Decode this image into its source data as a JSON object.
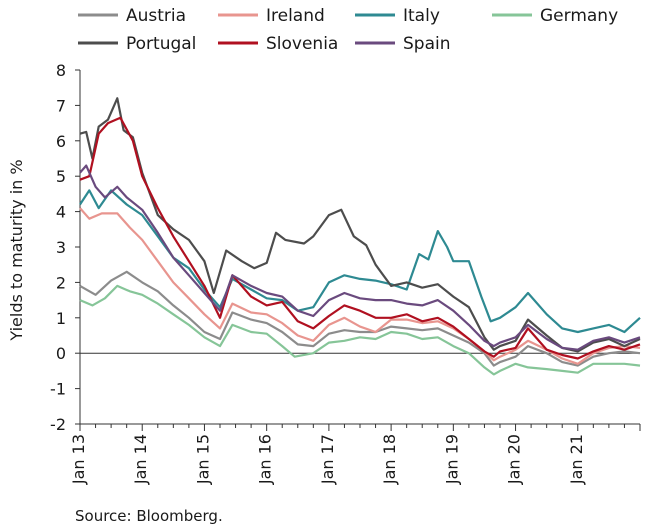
{
  "chart_data": {
    "type": "line",
    "title": "",
    "ylabel": "Yields to maturity in %",
    "xlabel": "",
    "source": "Source: Bloomberg.",
    "ylim": [
      -2,
      8
    ],
    "yticks": [
      -2,
      -1,
      0,
      1,
      2,
      3,
      4,
      5,
      6,
      7,
      8
    ],
    "xlim": [
      2013.0,
      2022.0
    ],
    "xticks": [
      {
        "label": "Jan 13",
        "x": 2013
      },
      {
        "label": "Jan 14",
        "x": 2014
      },
      {
        "label": "Jan 15",
        "x": 2015
      },
      {
        "label": "Jan 16",
        "x": 2016
      },
      {
        "label": "Jan 17",
        "x": 2017
      },
      {
        "label": "Jan 18",
        "x": 2018
      },
      {
        "label": "Jan 19",
        "x": 2019
      },
      {
        "label": "Jan 20",
        "x": 2020
      },
      {
        "label": "Jan 21",
        "x": 2021
      }
    ],
    "grid": false,
    "legend_position": "top",
    "series": [
      {
        "name": "Austria",
        "color": "#8c8c8c",
        "points": [
          [
            2013.0,
            1.9
          ],
          [
            2013.25,
            1.65
          ],
          [
            2013.5,
            2.05
          ],
          [
            2013.75,
            2.3
          ],
          [
            2014.0,
            2.0
          ],
          [
            2014.25,
            1.75
          ],
          [
            2014.5,
            1.35
          ],
          [
            2014.75,
            1.0
          ],
          [
            2015.0,
            0.6
          ],
          [
            2015.25,
            0.4
          ],
          [
            2015.45,
            1.15
          ],
          [
            2015.75,
            0.95
          ],
          [
            2016.0,
            0.85
          ],
          [
            2016.25,
            0.6
          ],
          [
            2016.5,
            0.25
          ],
          [
            2016.75,
            0.2
          ],
          [
            2017.0,
            0.55
          ],
          [
            2017.25,
            0.65
          ],
          [
            2017.5,
            0.6
          ],
          [
            2017.75,
            0.6
          ],
          [
            2018.0,
            0.75
          ],
          [
            2018.25,
            0.7
          ],
          [
            2018.5,
            0.65
          ],
          [
            2018.75,
            0.7
          ],
          [
            2019.0,
            0.5
          ],
          [
            2019.25,
            0.3
          ],
          [
            2019.5,
            0.0
          ],
          [
            2019.65,
            -0.35
          ],
          [
            2019.75,
            -0.25
          ],
          [
            2020.0,
            -0.1
          ],
          [
            2020.2,
            0.2
          ],
          [
            2020.5,
            0.0
          ],
          [
            2020.75,
            -0.25
          ],
          [
            2021.0,
            -0.35
          ],
          [
            2021.25,
            -0.1
          ],
          [
            2021.5,
            0.0
          ],
          [
            2021.75,
            0.05
          ],
          [
            2022.0,
            0.0
          ]
        ]
      },
      {
        "name": "Ireland",
        "color": "#e8958f",
        "points": [
          [
            2013.0,
            4.1
          ],
          [
            2013.15,
            3.8
          ],
          [
            2013.35,
            3.95
          ],
          [
            2013.6,
            3.95
          ],
          [
            2013.8,
            3.55
          ],
          [
            2014.0,
            3.2
          ],
          [
            2014.25,
            2.6
          ],
          [
            2014.5,
            2.0
          ],
          [
            2014.75,
            1.55
          ],
          [
            2015.0,
            1.1
          ],
          [
            2015.25,
            0.7
          ],
          [
            2015.45,
            1.4
          ],
          [
            2015.75,
            1.15
          ],
          [
            2016.0,
            1.1
          ],
          [
            2016.25,
            0.85
          ],
          [
            2016.5,
            0.5
          ],
          [
            2016.75,
            0.35
          ],
          [
            2017.0,
            0.8
          ],
          [
            2017.25,
            1.0
          ],
          [
            2017.5,
            0.75
          ],
          [
            2017.75,
            0.6
          ],
          [
            2018.0,
            0.95
          ],
          [
            2018.25,
            0.95
          ],
          [
            2018.5,
            0.85
          ],
          [
            2018.75,
            0.9
          ],
          [
            2019.0,
            0.7
          ],
          [
            2019.25,
            0.4
          ],
          [
            2019.5,
            0.05
          ],
          [
            2019.65,
            -0.2
          ],
          [
            2019.75,
            -0.1
          ],
          [
            2020.0,
            0.1
          ],
          [
            2020.2,
            0.35
          ],
          [
            2020.5,
            0.1
          ],
          [
            2020.75,
            -0.15
          ],
          [
            2021.0,
            -0.3
          ],
          [
            2021.25,
            0.0
          ],
          [
            2021.5,
            0.15
          ],
          [
            2021.75,
            0.2
          ],
          [
            2022.0,
            0.15
          ]
        ]
      },
      {
        "name": "Italy",
        "color": "#2e8a92",
        "points": [
          [
            2013.0,
            4.2
          ],
          [
            2013.15,
            4.6
          ],
          [
            2013.3,
            4.1
          ],
          [
            2013.5,
            4.6
          ],
          [
            2013.75,
            4.2
          ],
          [
            2014.0,
            3.9
          ],
          [
            2014.25,
            3.3
          ],
          [
            2014.5,
            2.7
          ],
          [
            2014.75,
            2.4
          ],
          [
            2015.0,
            1.8
          ],
          [
            2015.25,
            1.3
          ],
          [
            2015.45,
            2.1
          ],
          [
            2015.75,
            1.8
          ],
          [
            2016.0,
            1.55
          ],
          [
            2016.25,
            1.5
          ],
          [
            2016.5,
            1.2
          ],
          [
            2016.75,
            1.3
          ],
          [
            2017.0,
            2.0
          ],
          [
            2017.25,
            2.2
          ],
          [
            2017.5,
            2.1
          ],
          [
            2017.75,
            2.05
          ],
          [
            2018.0,
            1.95
          ],
          [
            2018.25,
            1.8
          ],
          [
            2018.45,
            2.8
          ],
          [
            2018.6,
            2.65
          ],
          [
            2018.75,
            3.45
          ],
          [
            2018.9,
            3.0
          ],
          [
            2019.0,
            2.6
          ],
          [
            2019.25,
            2.6
          ],
          [
            2019.45,
            1.6
          ],
          [
            2019.6,
            0.9
          ],
          [
            2019.75,
            1.0
          ],
          [
            2020.0,
            1.3
          ],
          [
            2020.2,
            1.7
          ],
          [
            2020.5,
            1.1
          ],
          [
            2020.75,
            0.7
          ],
          [
            2021.0,
            0.6
          ],
          [
            2021.25,
            0.7
          ],
          [
            2021.5,
            0.8
          ],
          [
            2021.75,
            0.6
          ],
          [
            2022.0,
            1.0
          ]
        ]
      },
      {
        "name": "Germany",
        "color": "#86c598",
        "points": [
          [
            2013.0,
            1.5
          ],
          [
            2013.2,
            1.35
          ],
          [
            2013.4,
            1.55
          ],
          [
            2013.6,
            1.9
          ],
          [
            2013.8,
            1.75
          ],
          [
            2014.0,
            1.65
          ],
          [
            2014.25,
            1.4
          ],
          [
            2014.5,
            1.1
          ],
          [
            2014.75,
            0.8
          ],
          [
            2015.0,
            0.45
          ],
          [
            2015.25,
            0.2
          ],
          [
            2015.45,
            0.8
          ],
          [
            2015.75,
            0.6
          ],
          [
            2016.0,
            0.55
          ],
          [
            2016.25,
            0.2
          ],
          [
            2016.45,
            -0.1
          ],
          [
            2016.75,
            0.0
          ],
          [
            2017.0,
            0.3
          ],
          [
            2017.25,
            0.35
          ],
          [
            2017.5,
            0.45
          ],
          [
            2017.75,
            0.4
          ],
          [
            2018.0,
            0.6
          ],
          [
            2018.25,
            0.55
          ],
          [
            2018.5,
            0.4
          ],
          [
            2018.75,
            0.45
          ],
          [
            2019.0,
            0.2
          ],
          [
            2019.25,
            0.0
          ],
          [
            2019.5,
            -0.4
          ],
          [
            2019.65,
            -0.6
          ],
          [
            2019.75,
            -0.5
          ],
          [
            2020.0,
            -0.3
          ],
          [
            2020.2,
            -0.4
          ],
          [
            2020.5,
            -0.45
          ],
          [
            2020.75,
            -0.5
          ],
          [
            2021.0,
            -0.55
          ],
          [
            2021.25,
            -0.3
          ],
          [
            2021.5,
            -0.3
          ],
          [
            2021.75,
            -0.3
          ],
          [
            2022.0,
            -0.35
          ]
        ]
      },
      {
        "name": "Portugal",
        "color": "#4d4d4d",
        "points": [
          [
            2013.0,
            6.2
          ],
          [
            2013.1,
            6.25
          ],
          [
            2013.2,
            5.5
          ],
          [
            2013.3,
            6.4
          ],
          [
            2013.45,
            6.6
          ],
          [
            2013.6,
            7.2
          ],
          [
            2013.7,
            6.3
          ],
          [
            2013.85,
            6.1
          ],
          [
            2014.0,
            5.1
          ],
          [
            2014.25,
            3.9
          ],
          [
            2014.5,
            3.5
          ],
          [
            2014.75,
            3.2
          ],
          [
            2015.0,
            2.6
          ],
          [
            2015.15,
            1.7
          ],
          [
            2015.35,
            2.9
          ],
          [
            2015.6,
            2.6
          ],
          [
            2015.8,
            2.4
          ],
          [
            2016.0,
            2.55
          ],
          [
            2016.15,
            3.4
          ],
          [
            2016.3,
            3.2
          ],
          [
            2016.6,
            3.1
          ],
          [
            2016.75,
            3.3
          ],
          [
            2017.0,
            3.9
          ],
          [
            2017.2,
            4.05
          ],
          [
            2017.4,
            3.3
          ],
          [
            2017.6,
            3.05
          ],
          [
            2017.75,
            2.5
          ],
          [
            2018.0,
            1.9
          ],
          [
            2018.25,
            2.0
          ],
          [
            2018.5,
            1.85
          ],
          [
            2018.75,
            1.95
          ],
          [
            2019.0,
            1.6
          ],
          [
            2019.25,
            1.3
          ],
          [
            2019.5,
            0.45
          ],
          [
            2019.65,
            0.1
          ],
          [
            2019.75,
            0.2
          ],
          [
            2020.0,
            0.35
          ],
          [
            2020.2,
            0.95
          ],
          [
            2020.5,
            0.5
          ],
          [
            2020.75,
            0.15
          ],
          [
            2021.0,
            0.05
          ],
          [
            2021.25,
            0.3
          ],
          [
            2021.5,
            0.4
          ],
          [
            2021.75,
            0.2
          ],
          [
            2022.0,
            0.4
          ]
        ]
      },
      {
        "name": "Slovenia",
        "color": "#b01020",
        "points": [
          [
            2013.0,
            4.9
          ],
          [
            2013.15,
            5.0
          ],
          [
            2013.3,
            6.2
          ],
          [
            2013.45,
            6.5
          ],
          [
            2013.65,
            6.65
          ],
          [
            2013.85,
            6.0
          ],
          [
            2014.0,
            5.0
          ],
          [
            2014.25,
            4.1
          ],
          [
            2014.5,
            3.3
          ],
          [
            2014.75,
            2.6
          ],
          [
            2015.0,
            1.9
          ],
          [
            2015.25,
            1.0
          ],
          [
            2015.45,
            2.2
          ],
          [
            2015.75,
            1.6
          ],
          [
            2016.0,
            1.35
          ],
          [
            2016.25,
            1.45
          ],
          [
            2016.5,
            0.9
          ],
          [
            2016.75,
            0.7
          ],
          [
            2017.0,
            1.05
          ],
          [
            2017.25,
            1.35
          ],
          [
            2017.5,
            1.2
          ],
          [
            2017.75,
            1.0
          ],
          [
            2018.0,
            1.0
          ],
          [
            2018.25,
            1.1
          ],
          [
            2018.5,
            0.9
          ],
          [
            2018.75,
            1.0
          ],
          [
            2019.0,
            0.75
          ],
          [
            2019.25,
            0.4
          ],
          [
            2019.5,
            0.05
          ],
          [
            2019.65,
            -0.1
          ],
          [
            2019.75,
            0.05
          ],
          [
            2020.0,
            0.15
          ],
          [
            2020.2,
            0.7
          ],
          [
            2020.5,
            0.1
          ],
          [
            2020.75,
            -0.05
          ],
          [
            2021.0,
            -0.15
          ],
          [
            2021.25,
            0.05
          ],
          [
            2021.5,
            0.2
          ],
          [
            2021.75,
            0.1
          ],
          [
            2022.0,
            0.25
          ]
        ]
      },
      {
        "name": "Spain",
        "color": "#6a4a7e",
        "points": [
          [
            2013.0,
            5.1
          ],
          [
            2013.1,
            5.3
          ],
          [
            2013.25,
            4.7
          ],
          [
            2013.4,
            4.4
          ],
          [
            2013.6,
            4.7
          ],
          [
            2013.75,
            4.4
          ],
          [
            2014.0,
            4.05
          ],
          [
            2014.25,
            3.4
          ],
          [
            2014.5,
            2.7
          ],
          [
            2014.75,
            2.2
          ],
          [
            2015.0,
            1.7
          ],
          [
            2015.25,
            1.2
          ],
          [
            2015.45,
            2.2
          ],
          [
            2015.75,
            1.9
          ],
          [
            2016.0,
            1.7
          ],
          [
            2016.25,
            1.6
          ],
          [
            2016.5,
            1.2
          ],
          [
            2016.75,
            1.05
          ],
          [
            2017.0,
            1.5
          ],
          [
            2017.25,
            1.7
          ],
          [
            2017.5,
            1.55
          ],
          [
            2017.75,
            1.5
          ],
          [
            2018.0,
            1.5
          ],
          [
            2018.25,
            1.4
          ],
          [
            2018.5,
            1.35
          ],
          [
            2018.75,
            1.5
          ],
          [
            2019.0,
            1.2
          ],
          [
            2019.25,
            0.8
          ],
          [
            2019.5,
            0.35
          ],
          [
            2019.65,
            0.2
          ],
          [
            2019.75,
            0.3
          ],
          [
            2020.0,
            0.45
          ],
          [
            2020.2,
            0.8
          ],
          [
            2020.5,
            0.4
          ],
          [
            2020.75,
            0.15
          ],
          [
            2021.0,
            0.1
          ],
          [
            2021.25,
            0.35
          ],
          [
            2021.5,
            0.45
          ],
          [
            2021.75,
            0.3
          ],
          [
            2022.0,
            0.45
          ]
        ]
      }
    ]
  }
}
